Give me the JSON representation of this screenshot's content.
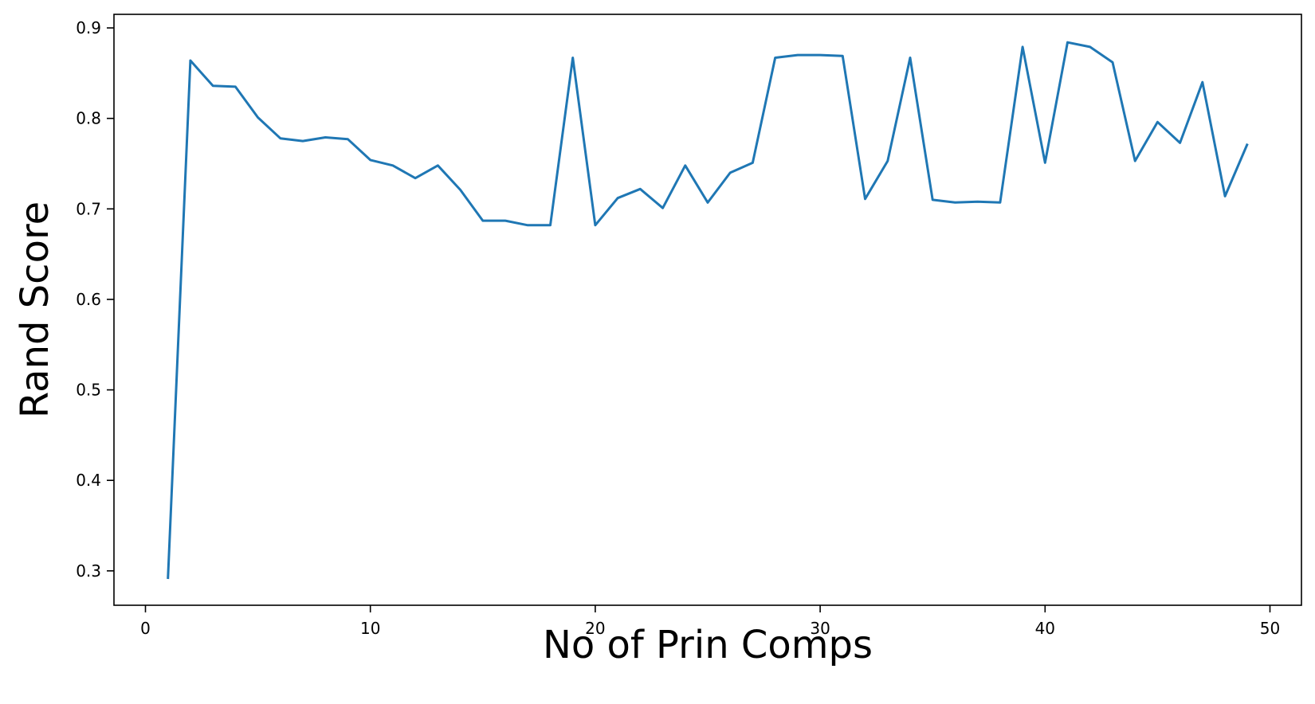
{
  "chart_data": {
    "type": "line",
    "title": "",
    "xlabel": "No of Prin Comps",
    "ylabel": "Rand Score",
    "xlim": [
      -1.4,
      51.4
    ],
    "ylim": [
      0.262,
      0.915
    ],
    "x_ticks": [
      0,
      10,
      20,
      30,
      40,
      50
    ],
    "y_ticks": [
      0.3,
      0.4,
      0.5,
      0.6,
      0.7,
      0.8,
      0.9
    ],
    "x_tick_labels": [
      "0",
      "10",
      "20",
      "30",
      "40",
      "50"
    ],
    "y_tick_labels": [
      "0.3",
      "0.4",
      "0.5",
      "0.6",
      "0.7",
      "0.8",
      "0.9"
    ],
    "grid": false,
    "legend": "none",
    "series": [
      {
        "color": "#1f77b4",
        "x": [
          1,
          2,
          3,
          4,
          5,
          6,
          7,
          8,
          9,
          10,
          11,
          12,
          13,
          14,
          15,
          16,
          17,
          18,
          19,
          20,
          21,
          22,
          23,
          24,
          25,
          26,
          27,
          28,
          29,
          30,
          31,
          32,
          33,
          34,
          35,
          36,
          37,
          38,
          39,
          40,
          41,
          42,
          43,
          44,
          45,
          46,
          47,
          48,
          49
        ],
        "y": [
          0.291,
          0.864,
          0.836,
          0.835,
          0.801,
          0.778,
          0.775,
          0.779,
          0.777,
          0.754,
          0.748,
          0.734,
          0.748,
          0.721,
          0.687,
          0.687,
          0.682,
          0.682,
          0.867,
          0.682,
          0.712,
          0.722,
          0.701,
          0.748,
          0.707,
          0.74,
          0.751,
          0.867,
          0.87,
          0.87,
          0.869,
          0.711,
          0.753,
          0.867,
          0.71,
          0.707,
          0.708,
          0.707,
          0.879,
          0.751,
          0.884,
          0.879,
          0.862,
          0.753,
          0.796,
          0.773,
          0.84,
          0.714,
          0.772
        ]
      }
    ]
  }
}
